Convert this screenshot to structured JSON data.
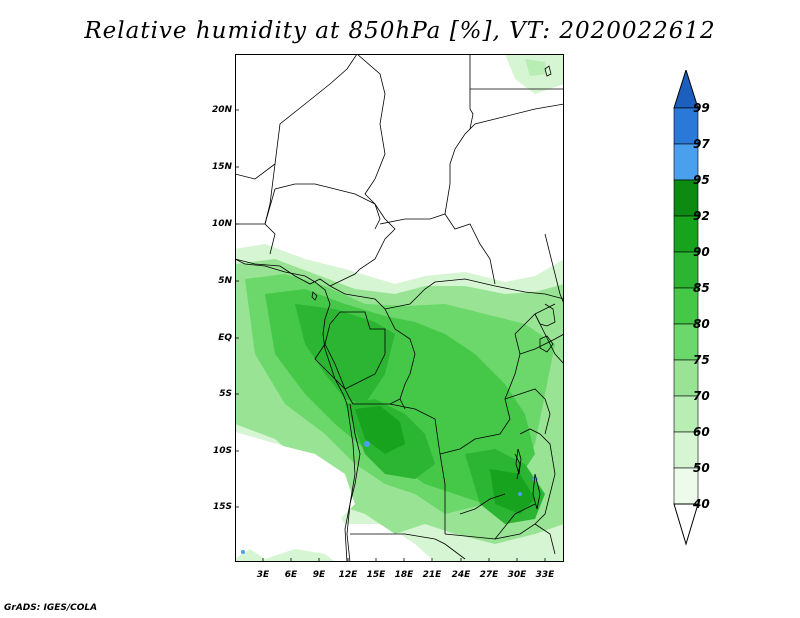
{
  "title": "Relative humidity at 850hPa [%], VT: 2020022612",
  "footer": "GrADS: IGES/COLA",
  "map": {
    "lat_labels": [
      "20N",
      "15N",
      "10N",
      "5N",
      "EQ",
      "5S",
      "10S",
      "15S"
    ],
    "lon_labels": [
      "3E",
      "6E",
      "9E",
      "12E",
      "15E",
      "18E",
      "21E",
      "24E",
      "27E",
      "30E",
      "33E"
    ],
    "lat_range": [
      -20,
      25
    ],
    "lon_range": [
      0,
      35
    ]
  },
  "colorbar": {
    "levels": [
      "99",
      "97",
      "95",
      "92",
      "90",
      "85",
      "80",
      "75",
      "70",
      "60",
      "50",
      "40"
    ],
    "colors": {
      "above_99": "#1d5fbe",
      "97_99": "#2a78d8",
      "95_97": "#4aa0ec",
      "92_95": "#0c8a12",
      "90_92": "#17a31e",
      "85_90": "#2cb532",
      "80_85": "#45c848",
      "75_80": "#6cd76a",
      "70_75": "#98e494",
      "60_70": "#b8edb4",
      "50_60": "#d6f5d2",
      "40_50": "#ecfbea",
      "below_40": "#ffffff"
    }
  }
}
